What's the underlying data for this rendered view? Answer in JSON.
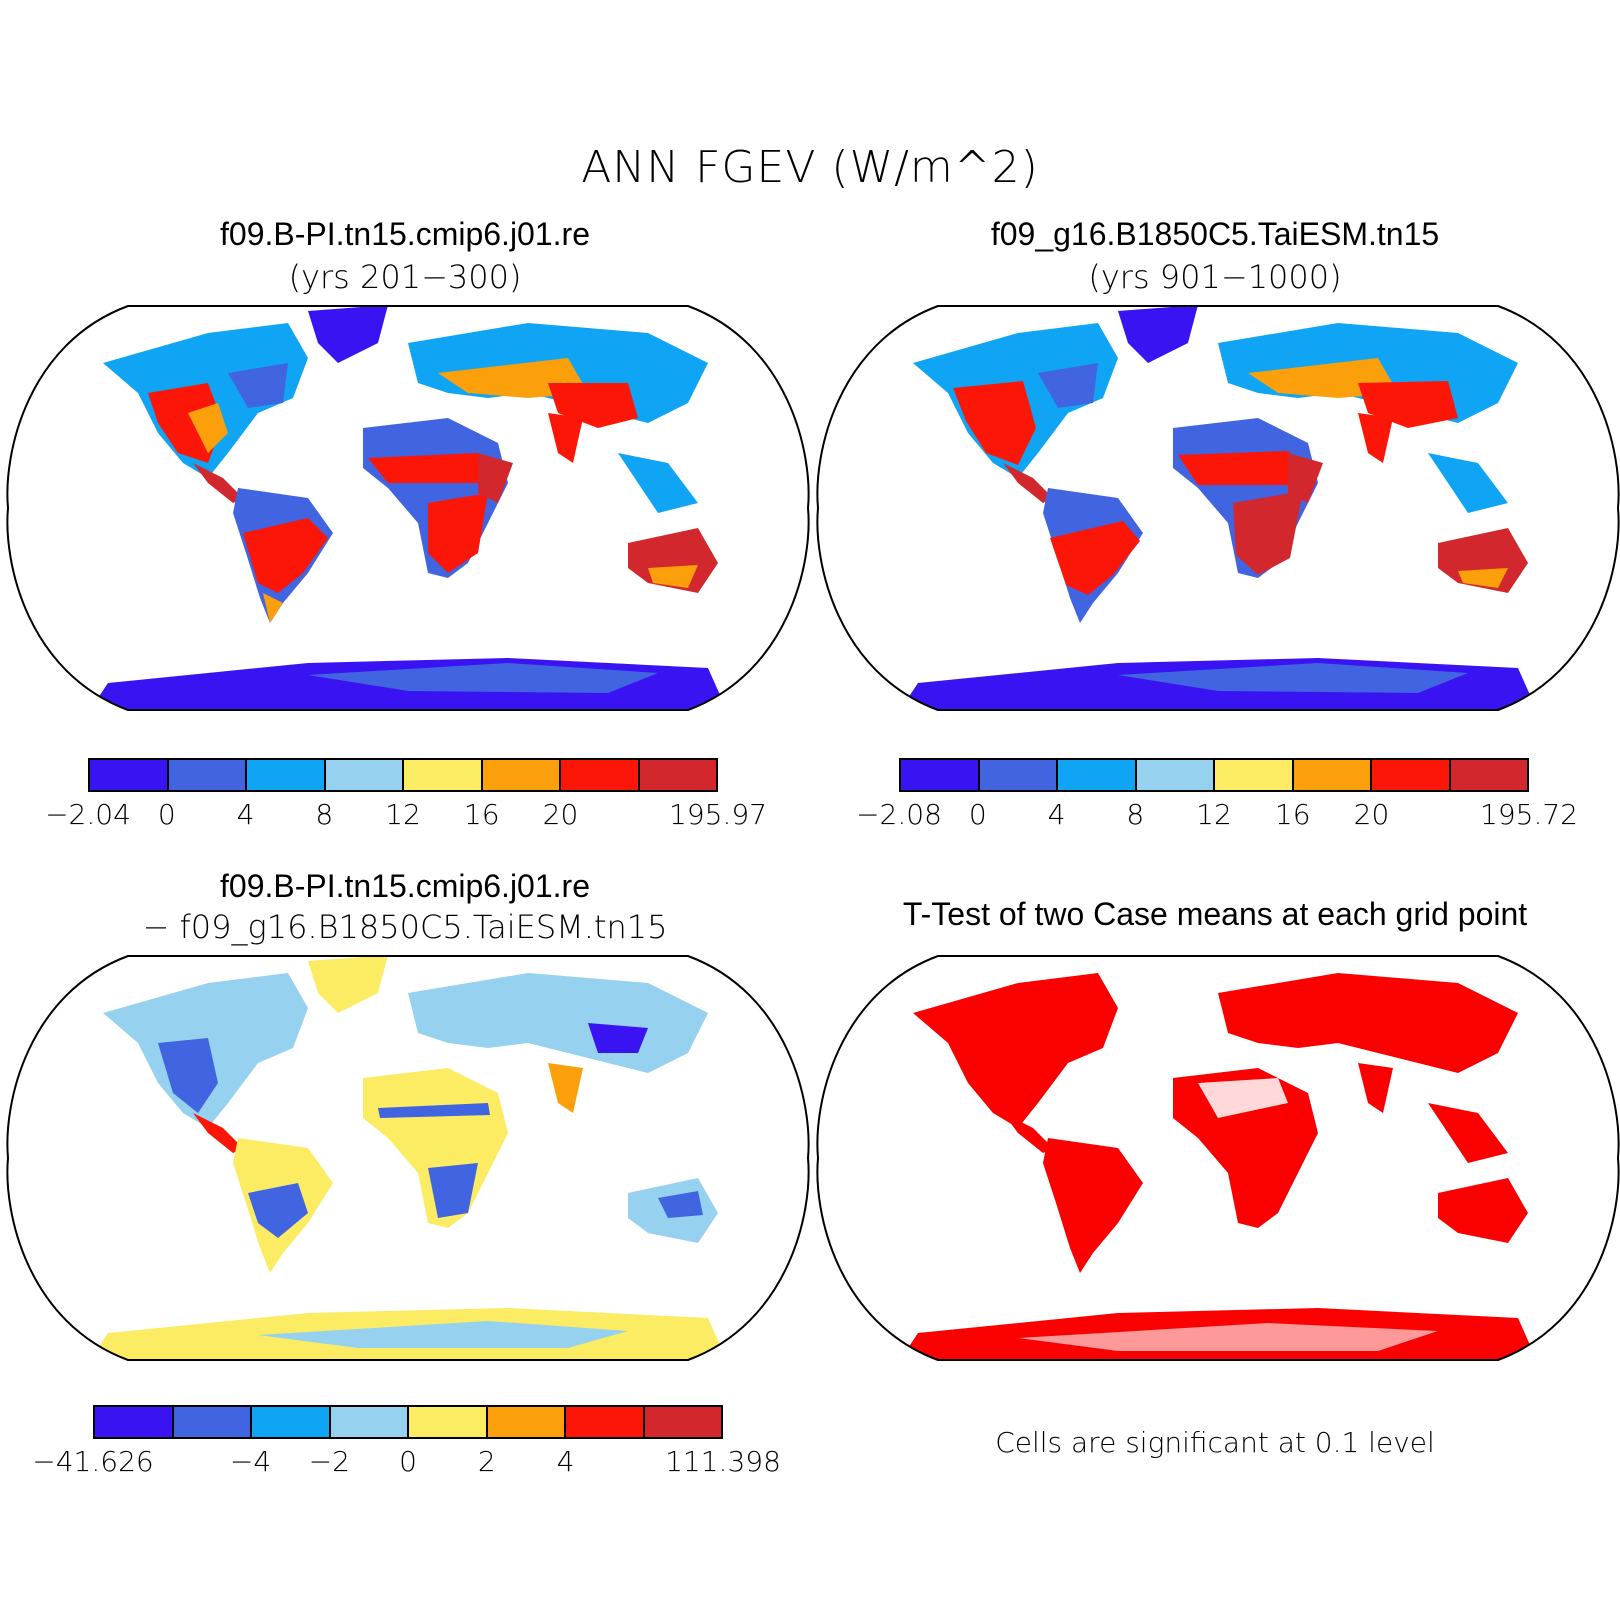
{
  "title": "ANN FGEV (W/m^2)",
  "panels": {
    "p1": {
      "title": "f09.B-PI.tn15.cmip6.j01.re",
      "subtitle": "(yrs 201−300)"
    },
    "p2": {
      "title": "f09_g16.B1850C5.TaiESM.tn15",
      "subtitle": "(yrs 901−1000)"
    },
    "p3": {
      "title": "f09.B-PI.tn15.cmip6.j01.re",
      "subtitle": "−  f09_g16.B1850C5.TaiESM.tn15"
    },
    "p4": {
      "title": "T-Test of two Case means at each grid point",
      "note": "Cells are significant at 0.1 level"
    }
  },
  "colorbars": {
    "cb1": {
      "colors": [
        "#3a13f3",
        "#4164e0",
        "#10a4f4",
        "#96d1ef",
        "#fbec64",
        "#fba00a",
        "#fb1608",
        "#d2282d"
      ],
      "labels": [
        "−2.04",
        "0",
        "4",
        "8",
        "12",
        "16",
        "20",
        "195.97"
      ]
    },
    "cb2": {
      "colors": [
        "#3a13f3",
        "#4164e0",
        "#10a4f4",
        "#96d1ef",
        "#fbec64",
        "#fba00a",
        "#fb1608",
        "#d2282d"
      ],
      "labels": [
        "−2.08",
        "0",
        "4",
        "8",
        "12",
        "16",
        "20",
        "195.72"
      ]
    },
    "cb3": {
      "colors": [
        "#3a13f3",
        "#4164e0",
        "#10a4f4",
        "#96d1ef",
        "#fbec64",
        "#fba00a",
        "#fb1608",
        "#d2282d"
      ],
      "labels": [
        "−41.626",
        "",
        "−4",
        "−2",
        "0",
        "2",
        "4",
        "111.398"
      ]
    }
  }
}
